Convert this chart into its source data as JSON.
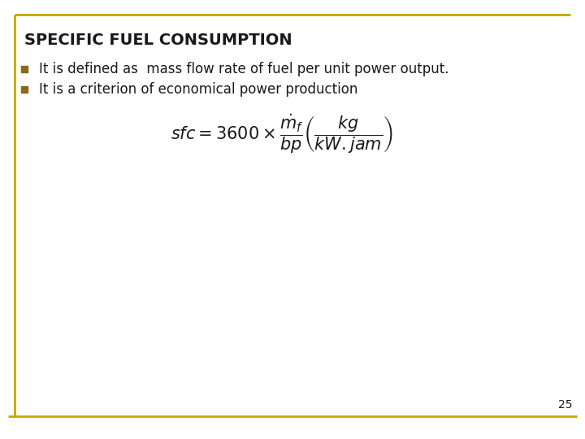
{
  "title": "SPECIFIC FUEL CONSUMPTION",
  "title_color": "#1a1a1a",
  "title_fontsize": 14,
  "bullet_color": "#8B6914",
  "bullet1": "It is defined as  mass flow rate of fuel per unit power output.",
  "bullet2": "It is a criterion of economical power production",
  "text_color": "#1a1a1a",
  "text_fontsize": 12,
  "border_color": "#C8A800",
  "page_number": "25",
  "bg_color": "#ffffff"
}
